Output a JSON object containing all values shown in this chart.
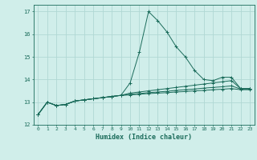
{
  "xlabel": "Humidex (Indice chaleur)",
  "ylabel": "",
  "bg_color": "#d0eeea",
  "grid_color": "#b0d8d4",
  "line_color": "#1a6b5a",
  "xlim": [
    -0.5,
    23.5
  ],
  "ylim": [
    12,
    17.3
  ],
  "xticks": [
    0,
    1,
    2,
    3,
    4,
    5,
    6,
    7,
    8,
    9,
    10,
    11,
    12,
    13,
    14,
    15,
    16,
    17,
    18,
    19,
    20,
    21,
    22,
    23
  ],
  "yticks": [
    12,
    13,
    14,
    15,
    16,
    17
  ],
  "series": [
    [
      12.45,
      13.0,
      12.85,
      12.9,
      13.05,
      13.1,
      13.15,
      13.2,
      13.25,
      13.3,
      13.85,
      15.2,
      17.0,
      16.6,
      16.1,
      15.45,
      15.0,
      14.4,
      14.0,
      13.95,
      14.1,
      14.1,
      13.6,
      13.6
    ],
    [
      12.45,
      13.0,
      12.85,
      12.9,
      13.05,
      13.1,
      13.15,
      13.2,
      13.25,
      13.3,
      13.4,
      13.45,
      13.5,
      13.55,
      13.6,
      13.65,
      13.7,
      13.75,
      13.8,
      13.85,
      13.9,
      13.95,
      13.6,
      13.6
    ],
    [
      12.45,
      13.0,
      12.85,
      12.9,
      13.05,
      13.1,
      13.15,
      13.2,
      13.25,
      13.3,
      13.35,
      13.38,
      13.42,
      13.45,
      13.48,
      13.52,
      13.55,
      13.58,
      13.62,
      13.65,
      13.68,
      13.72,
      13.58,
      13.58
    ],
    [
      12.45,
      13.0,
      12.85,
      12.9,
      13.05,
      13.1,
      13.15,
      13.2,
      13.25,
      13.3,
      13.32,
      13.35,
      13.38,
      13.4,
      13.42,
      13.45,
      13.47,
      13.5,
      13.52,
      13.55,
      13.57,
      13.6,
      13.55,
      13.55
    ]
  ]
}
